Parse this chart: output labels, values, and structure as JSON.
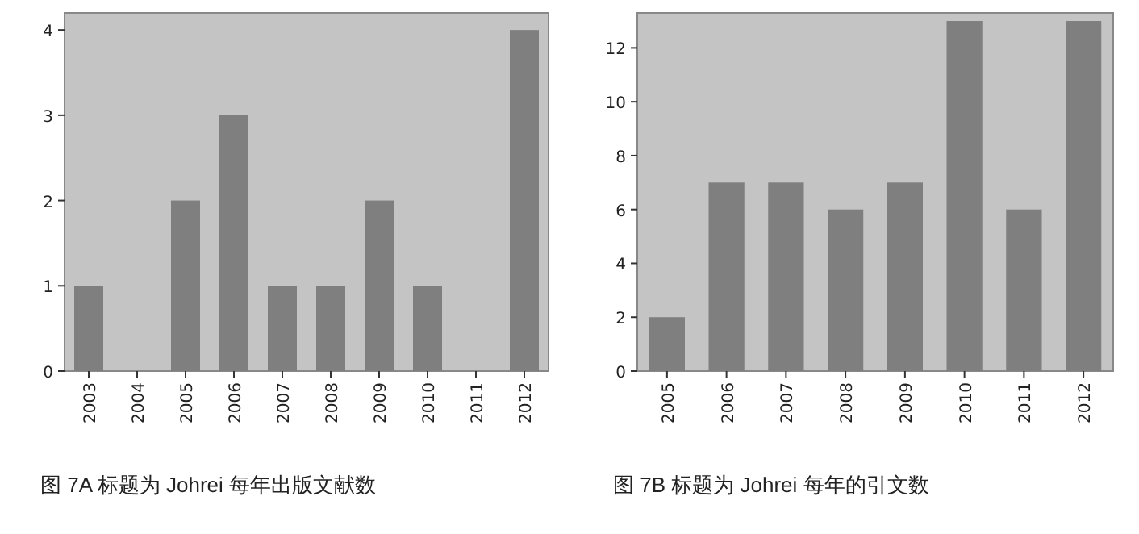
{
  "chart_data": [
    {
      "type": "bar",
      "categories": [
        "2003",
        "2004",
        "2005",
        "2006",
        "2007",
        "2008",
        "2009",
        "2010",
        "2011",
        "2012"
      ],
      "values": [
        1,
        0,
        2,
        3,
        1,
        1,
        2,
        1,
        0,
        4
      ],
      "color": "#7f7f7f",
      "ylim": [
        0,
        4.2
      ],
      "yticks": [
        0,
        1,
        2,
        3,
        4
      ],
      "annotations": [
        "图 7A 标题为 Johrei 每年出版文献数"
      ]
    },
    {
      "type": "bar",
      "categories": [
        "2005",
        "2006",
        "2007",
        "2008",
        "2009",
        "2010",
        "2011",
        "2012"
      ],
      "values": [
        2,
        7,
        7,
        6,
        7,
        13,
        6,
        13
      ],
      "color": "#7f7f7f",
      "ylim": [
        0,
        13.3
      ],
      "yticks": [
        0,
        2,
        4,
        6,
        8,
        10,
        12
      ],
      "annotations": [
        "图 7B  标题为 Johrei 每年的引文数"
      ]
    }
  ]
}
